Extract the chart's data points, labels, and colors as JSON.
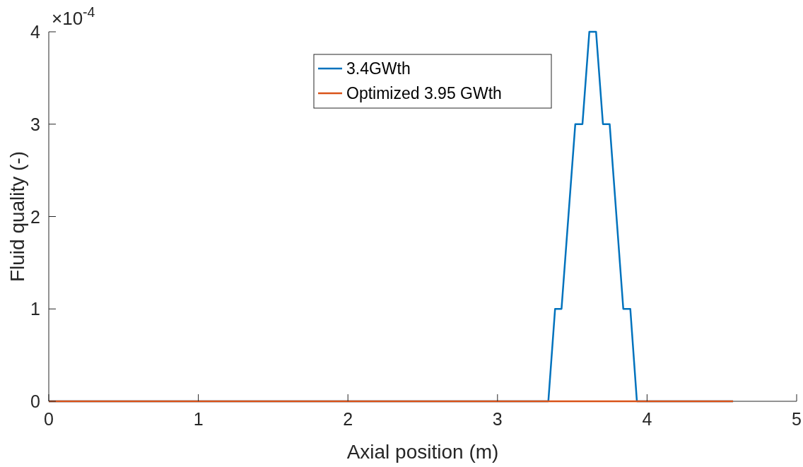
{
  "chart_data": {
    "type": "line",
    "xlabel": "Axial position (m)",
    "ylabel": "Fluid quality (-)",
    "xlim": [
      0,
      5
    ],
    "xticks": [
      0,
      1,
      2,
      3,
      4,
      5
    ],
    "ylim": [
      0,
      4
    ],
    "yticks": [
      0,
      1,
      2,
      3,
      4
    ],
    "annotations": [
      "×10$^{-4}$"
    ],
    "legend": "top",
    "grid": false,
    "marker": "none",
    "line_style": "solid",
    "series": [
      {
        "name": "3.4GWth",
        "color": "#0072bd",
        "x": [
          0,
          3.34,
          3.385,
          3.428,
          3.52,
          3.568,
          3.614,
          3.659,
          3.705,
          3.75,
          3.841,
          3.888,
          3.932,
          4.575
        ],
        "values": [
          0,
          0,
          1,
          1,
          3,
          3,
          4,
          4,
          3,
          3,
          1,
          1,
          0,
          0
        ]
      },
      {
        "name": "Optimized 3.95 GWth",
        "color": "#d95319",
        "x": [
          0,
          4.575
        ],
        "values": [
          0,
          0
        ]
      }
    ]
  }
}
